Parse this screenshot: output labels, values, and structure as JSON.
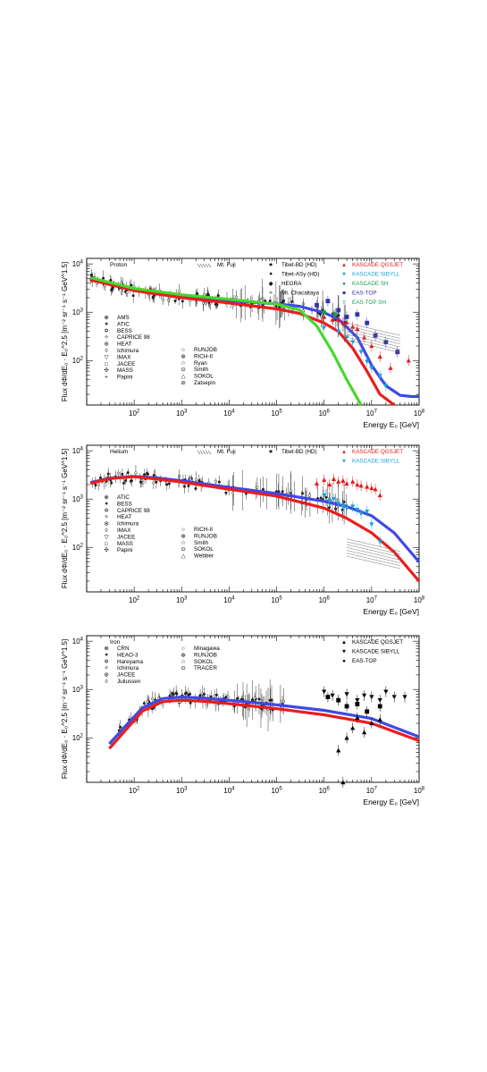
{
  "chart_data": [
    {
      "type": "line",
      "title": "Proton",
      "ylabel": "Flux dΦ/dE₀ · E₀^2.5 [m⁻² sr⁻¹ s⁻¹ GeV^1.5]",
      "xlabel": "Energy E₀ [GeV]",
      "x_scale": "log",
      "y_scale": "log",
      "xlim": [
        10,
        100000000
      ],
      "ylim": [
        12,
        13000
      ],
      "x_ticks": [
        {
          "v": 100,
          "l": "10^2"
        },
        {
          "v": 1000,
          "l": "10^3"
        },
        {
          "v": 10000,
          "l": "10^4"
        },
        {
          "v": 100000,
          "l": "10^5"
        },
        {
          "v": 1000000,
          "l": "10^6"
        },
        {
          "v": 10000000,
          "l": "10^7"
        },
        {
          "v": 100000000,
          "l": "10^8"
        }
      ],
      "y_ticks": [
        {
          "v": 100,
          "l": "10^2"
        },
        {
          "v": 1000,
          "l": "10^3"
        },
        {
          "v": 10000,
          "l": "10^4"
        }
      ],
      "legend_left": [
        "AMS",
        "ATIC",
        "BESS",
        "CAPRICE 98",
        "HEAT",
        "Ichimura",
        "IMAX",
        "JACEE",
        "MASS",
        "Papini"
      ],
      "legend_mid": [
        "RUNJOB",
        "RICH-II",
        "Ryan",
        "Smith",
        "SOKOL",
        "Zatsepin"
      ],
      "legend_top": [
        "Mt. Fuji",
        "Tibet-BD (HD)",
        "Tibet-ASγ (HD)",
        "HEGRA",
        "Mt. Chacaltaya"
      ],
      "legend_right": [
        {
          "name": "KASCADE QGSJET",
          "color": "#e31a1c"
        },
        {
          "name": "KASCADE SIBYLL",
          "color": "#1ba1d8"
        },
        {
          "name": "KASCADE SH",
          "color": "#1a9e50"
        },
        {
          "name": "EAS-TOP",
          "color": "#3333aa"
        },
        {
          "name": "EAS-TOP SH",
          "color": "#1a9e50"
        }
      ],
      "series": [
        {
          "color": "#3f49e6",
          "x": [
            12,
            100,
            1000,
            10000,
            100000,
            300000,
            1000000,
            2000000,
            5000000,
            10000000,
            20000000,
            40000000,
            70000000,
            100000000
          ],
          "y": [
            4800,
            2900,
            2150,
            1750,
            1480,
            1330,
            980,
            720,
            300,
            80,
            30,
            19,
            18,
            18
          ]
        },
        {
          "color": "#ea1d1d",
          "x": [
            12,
            100,
            1000,
            10000,
            100000,
            300000,
            1000000,
            2000000,
            4000000,
            8000000,
            15000000,
            30000000
          ],
          "y": [
            4700,
            2800,
            2000,
            1550,
            1170,
            950,
            600,
            400,
            180,
            60,
            20,
            12
          ]
        },
        {
          "color": "#45d82c",
          "x": [
            12,
            100,
            1000,
            10000,
            100000,
            300000,
            700000,
            1500000,
            3000000,
            6000000
          ],
          "y": [
            5200,
            3100,
            2300,
            1850,
            1470,
            1120,
            520,
            150,
            40,
            12
          ]
        }
      ],
      "kascade_qgsjet": [
        [
          1000000,
          800
        ],
        [
          1500000,
          700
        ],
        [
          2000000,
          700
        ],
        [
          2500000,
          600
        ],
        [
          3000000,
          620
        ],
        [
          4000000,
          500
        ],
        [
          5000000,
          450
        ],
        [
          7000000,
          300
        ],
        [
          10000000,
          200
        ],
        [
          15000000,
          120
        ],
        [
          25000000,
          70
        ],
        [
          60000000,
          100
        ]
      ],
      "kascade_sibyll": [
        [
          1000000,
          480
        ],
        [
          2000000,
          400
        ],
        [
          3000000,
          300
        ],
        [
          4000000,
          240
        ],
        [
          6000000,
          150
        ],
        [
          8000000,
          95
        ],
        [
          10000000,
          70
        ],
        [
          15000000,
          48
        ],
        [
          20000000,
          30
        ]
      ],
      "kascade_sh": [
        [
          1000000,
          1000
        ],
        [
          1700000,
          900
        ]
      ],
      "eas_top": [
        [
          700000,
          1400
        ],
        [
          1200000,
          1700
        ],
        [
          2000000,
          1100
        ],
        [
          3000000,
          800
        ],
        [
          5000000,
          900
        ],
        [
          8000000,
          600
        ],
        [
          12000000,
          330
        ],
        [
          20000000,
          240
        ],
        [
          35000000,
          150
        ]
      ]
    },
    {
      "type": "line",
      "title": "Helium",
      "ylabel": "Flux dΦ/dE₀ · E₀^2.5 [m⁻² sr⁻¹ s⁻¹ GeV^1.5]",
      "xlabel": "Energy E₀ [GeV]",
      "x_scale": "log",
      "y_scale": "log",
      "xlim": [
        10,
        100000000
      ],
      "ylim": [
        12,
        13000
      ],
      "x_ticks": [
        {
          "v": 100,
          "l": "10^2"
        },
        {
          "v": 1000,
          "l": "10^3"
        },
        {
          "v": 10000,
          "l": "10^4"
        },
        {
          "v": 100000,
          "l": "10^5"
        },
        {
          "v": 1000000,
          "l": "10^6"
        },
        {
          "v": 10000000,
          "l": "10^7"
        },
        {
          "v": 100000000,
          "l": "10^8"
        }
      ],
      "y_ticks": [
        {
          "v": 100,
          "l": "10^2"
        },
        {
          "v": 1000,
          "l": "10^3"
        },
        {
          "v": 10000,
          "l": "10^4"
        }
      ],
      "legend_left": [
        "ATIC",
        "BESS",
        "CAPRICE 98",
        "HEAT",
        "Ichimura",
        "IMAX",
        "JACEE",
        "MASS",
        "Papini"
      ],
      "legend_mid": [
        "RICH-II",
        "RUNJOB",
        "Smith",
        "SOKOL",
        "Webber"
      ],
      "legend_top": [
        "Mt. Fuji",
        "Tibet-BD (HD)"
      ],
      "legend_right": [
        {
          "name": "KASCADE QGSJET",
          "color": "#e31a1c"
        },
        {
          "name": "KASCADE SIBYLL",
          "color": "#1ba1d8"
        }
      ],
      "series": [
        {
          "color": "#3f49e6",
          "x": [
            12,
            30,
            100,
            300,
            1000,
            10000,
            100000,
            1000000,
            3000000,
            10000000,
            30000000,
            100000000
          ],
          "y": [
            2200,
            2700,
            2950,
            2750,
            2400,
            1750,
            1300,
            900,
            700,
            450,
            200,
            50
          ]
        },
        {
          "color": "#ea1d1d",
          "x": [
            12,
            30,
            100,
            300,
            1000,
            10000,
            100000,
            1000000,
            3000000,
            10000000,
            30000000,
            100000000
          ],
          "y": [
            2100,
            2650,
            2900,
            2600,
            2250,
            1600,
            1150,
            650,
            400,
            200,
            80,
            20
          ]
        }
      ],
      "kascade_qgsjet": [
        [
          700000,
          2100
        ],
        [
          1000000,
          2500
        ],
        [
          1300000,
          2000
        ],
        [
          1600000,
          2600
        ],
        [
          2000000,
          2300
        ],
        [
          2500000,
          2400
        ],
        [
          3000000,
          2100
        ],
        [
          4000000,
          2300
        ],
        [
          5000000,
          2000
        ],
        [
          6000000,
          1900
        ],
        [
          8000000,
          1800
        ],
        [
          10000000,
          1700
        ],
        [
          12000000,
          1600
        ],
        [
          15000000,
          1200
        ]
      ],
      "kascade_sibyll": [
        [
          1000000,
          1200
        ],
        [
          1300000,
          900
        ],
        [
          1600000,
          1000
        ],
        [
          2000000,
          800
        ],
        [
          2500000,
          700
        ],
        [
          3000000,
          650
        ],
        [
          4000000,
          700
        ],
        [
          5000000,
          600
        ],
        [
          6000000,
          500
        ],
        [
          8000000,
          550
        ],
        [
          10000000,
          300
        ],
        [
          15000000,
          130
        ]
      ]
    },
    {
      "type": "line",
      "title": "Iron",
      "ylabel": "Flux dΦ/dE₀ · E₀^2.5 [m⁻² sr⁻¹ s⁻¹ GeV^1.5]",
      "xlabel": "Energy E₀ [GeV]",
      "x_scale": "log",
      "y_scale": "log",
      "xlim": [
        10,
        100000000
      ],
      "ylim": [
        12,
        13000
      ],
      "x_ticks": [
        {
          "v": 100,
          "l": "10^2"
        },
        {
          "v": 1000,
          "l": "10^3"
        },
        {
          "v": 10000,
          "l": "10^4"
        },
        {
          "v": 100000,
          "l": "10^5"
        },
        {
          "v": 1000000,
          "l": "10^6"
        },
        {
          "v": 10000000,
          "l": "10^7"
        },
        {
          "v": 100000000,
          "l": "10^8"
        }
      ],
      "y_ticks": [
        {
          "v": 100,
          "l": "10^2"
        },
        {
          "v": 1000,
          "l": "10^3"
        },
        {
          "v": 10000,
          "l": "10^4"
        }
      ],
      "legend_left": [
        "CRN",
        "HEAO-3",
        "Hareyama",
        "Ichimura",
        "JACEE",
        "Juliussen"
      ],
      "legend_mid": [
        "Minagawa",
        "RUNJOB",
        "SOKOL",
        "TRACER"
      ],
      "legend_top": [],
      "legend_right": [
        {
          "name": "KASCADE QGSJET",
          "color": "#000000"
        },
        {
          "name": "KASCADE SIBYLL",
          "color": "#000000"
        },
        {
          "name": "EAS-TOP",
          "color": "#000000"
        }
      ],
      "series": [
        {
          "color": "#3f49e6",
          "x": [
            30,
            60,
            150,
            400,
            1000,
            3000,
            10000,
            100000,
            1000000,
            10000000,
            100000000
          ],
          "y": [
            75,
            160,
            420,
            650,
            700,
            660,
            600,
            480,
            370,
            250,
            105
          ]
        },
        {
          "color": "#ea1d1d",
          "x": [
            30,
            60,
            150,
            400,
            1000,
            3000,
            10000,
            100000,
            1000000,
            10000000,
            100000000
          ],
          "y": [
            60,
            130,
            360,
            560,
            600,
            570,
            510,
            400,
            300,
            200,
            87
          ]
        }
      ],
      "kascade_qgsjet": [
        [
          2000000,
          55
        ],
        [
          3000000,
          100
        ],
        [
          4000000,
          160
        ],
        [
          5000000,
          260
        ],
        [
          7000000,
          130
        ],
        [
          10000000,
          200
        ],
        [
          15000000,
          240
        ],
        [
          2500000,
          12
        ]
      ],
      "kascade_sibyll": [
        [
          1000000,
          900
        ],
        [
          1500000,
          750
        ],
        [
          2000000,
          600
        ],
        [
          3000000,
          800
        ],
        [
          5000000,
          600
        ],
        [
          7000000,
          750
        ],
        [
          10000000,
          700
        ],
        [
          15000000,
          600
        ],
        [
          20000000,
          900
        ],
        [
          30000000,
          700
        ],
        [
          50000000,
          700
        ]
      ],
      "eas_top": [
        [
          1200000,
          700
        ],
        [
          2000000,
          600
        ],
        [
          3000000,
          450
        ],
        [
          5000000,
          500
        ],
        [
          8000000,
          350
        ],
        [
          15000000,
          450
        ]
      ]
    }
  ]
}
